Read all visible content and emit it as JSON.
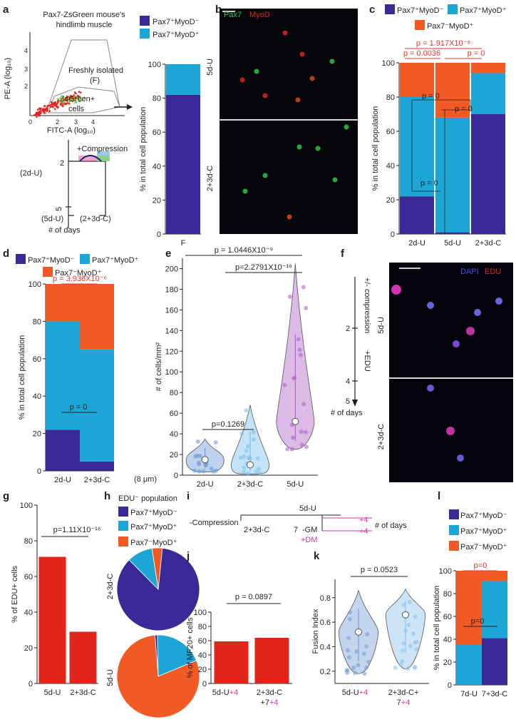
{
  "colors": {
    "pax7p_myod_n": "#3a2a97",
    "pax7p_myod_p": "#1ba6d6",
    "pax7n_myod_p": "#f15a24",
    "edu_bar": "#e1251b",
    "pval_red": "#e8312f",
    "magenta": "#d4359f"
  },
  "legend": {
    "pax7p_myod_n": "Pax7⁺MyoD⁻",
    "pax7p_myod_p": "Pax7⁺MyoD⁺",
    "pax7n_myod_p": "Pax7⁻MyoD⁺"
  },
  "panels": {
    "a": {
      "letter": "a",
      "flow_title_1": "Pax7-ZsGreen mouse's",
      "flow_title_2": "hindlimb muscle",
      "y_axis": "PE-A (log₁₀)",
      "x_axis": "FITC-A (log₁₀)",
      "gate_1": "Freshly isolated",
      "gate_2": "(F)",
      "cells_1": "ZsGreen+",
      "cells_2": "cells",
      "yticks": [
        "2",
        "3",
        "4"
      ],
      "xticks": [
        "0",
        "2",
        "3",
        "4"
      ],
      "timeline_compression": "+Compression",
      "timeline_2du": "(2d-U)",
      "timeline_5du": "(5d-U)",
      "timeline_23dc": "(2+3d-C)",
      "timeline_days": "# of days",
      "tick_2": "2",
      "tick_5": "5"
    },
    "b": {
      "letter": "b",
      "stain_1": "Pax7",
      "stain_2": "MyoD",
      "row_1": "5d-U",
      "row_2": "2+3d-C"
    },
    "c": {
      "letter": "c",
      "pvals": [
        "p = 1.917X10⁻⁸",
        "p = 0.0036",
        "p = 0",
        "p = 0",
        "p = 0",
        "p = 0"
      ]
    },
    "d": {
      "letter": "d",
      "pvals": [
        "p = 3.936X10⁻⁶",
        "p = 0"
      ],
      "x_suffix": "(8 μm)"
    },
    "e": {
      "letter": "e",
      "pvals": [
        "p = 1.0446X10⁻⁹",
        "p=2.2791X10⁻¹⁹",
        "p=0.1269"
      ]
    },
    "f": {
      "letter": "f",
      "stain_1": "DAPI",
      "stain_2": "EDU",
      "timeline_compression": "+/- compression",
      "timeline_edu": "+EDU",
      "timeline_days": "# of days",
      "ticks": [
        "2",
        "4",
        "5"
      ],
      "row_1": "5d-U",
      "row_2": "2+3d-C"
    },
    "g": {
      "letter": "g",
      "pval": "p=1.11X10⁻¹⁶"
    },
    "h": {
      "letter": "h",
      "title": "EDU⁻ population",
      "row_1": "2+3d-C",
      "row_2": "5d-U"
    },
    "i": {
      "letter": "i",
      "minus_compression": "-Compression",
      "du": "5d-U",
      "dc": "2+3d-C",
      "seven": "7",
      "gm": "-GM",
      "dm": "+DM",
      "plus4a": "+4",
      "plus4b": "+4",
      "days": "# of days"
    },
    "j": {
      "letter": "j",
      "pval": "p = 0.0897",
      "xl1_a": "5d-U",
      "xl1_b": "+4",
      "xl2_a": "2+3d-C",
      "xl2_b": "+7",
      "xl2_c": "+4"
    },
    "k": {
      "letter": "k",
      "pval": "p = 0.0523",
      "xl1_a": "5d-U",
      "xl1_b": "+4",
      "xl2_a": "2+3d-C+",
      "xl2_b": "7",
      "xl2_c": "+4"
    },
    "l": {
      "letter": "l",
      "pvals": [
        "p=0",
        "p=0"
      ]
    }
  },
  "chart_data": [
    {
      "panel": "a",
      "type": "bar",
      "stacked": true,
      "categories": [
        "F"
      ],
      "series": [
        {
          "name": "Pax7⁺MyoD⁻",
          "values": [
            82
          ]
        },
        {
          "name": "Pax7⁺MyoD⁺",
          "values": [
            18
          ]
        }
      ],
      "ylabel": "% in total cell population",
      "ylim": [
        0,
        100
      ],
      "yticks": [
        0,
        20,
        40,
        60,
        80,
        100
      ]
    },
    {
      "panel": "c",
      "type": "bar",
      "stacked": true,
      "categories": [
        "2d-U",
        "5d-U",
        "2+3d-C"
      ],
      "series": [
        {
          "name": "Pax7⁺MyoD⁻",
          "values": [
            22,
            1,
            70
          ]
        },
        {
          "name": "Pax7⁺MyoD⁺",
          "values": [
            58,
            67,
            24
          ]
        },
        {
          "name": "Pax7⁻MyoD⁺",
          "values": [
            20,
            32,
            6
          ]
        }
      ],
      "ylabel": "% in total cell population",
      "ylim": [
        0,
        100
      ],
      "yticks": [
        0,
        20,
        40,
        60,
        80,
        100
      ]
    },
    {
      "panel": "d",
      "type": "bar",
      "stacked": true,
      "categories": [
        "2d-U",
        "2+3d-C"
      ],
      "series": [
        {
          "name": "Pax7⁺MyoD⁻",
          "values": [
            22,
            5
          ]
        },
        {
          "name": "Pax7⁺MyoD⁺",
          "values": [
            58,
            60
          ]
        },
        {
          "name": "Pax7⁻MyoD⁺",
          "values": [
            20,
            35
          ]
        }
      ],
      "ylabel": "% in total cell population",
      "ylim": [
        0,
        100
      ],
      "yticks": [
        0,
        20,
        40,
        60,
        80,
        100
      ]
    },
    {
      "panel": "e",
      "type": "scatter",
      "categories": [
        "2d-U",
        "2+3d-C",
        "5d-U"
      ],
      "medians": [
        15,
        10,
        52
      ],
      "ranges": [
        [
          3,
          35
        ],
        [
          1,
          68
        ],
        [
          25,
          205
        ]
      ],
      "ylabel": "# of cells/mm²",
      "ylim": [
        0,
        210
      ],
      "yticks": [
        0,
        20,
        40,
        60,
        80,
        100,
        120,
        140,
        160,
        180,
        200
      ]
    },
    {
      "panel": "g",
      "type": "bar",
      "categories": [
        "5d-U",
        "2+3d-C"
      ],
      "values": [
        71,
        29
      ],
      "ylabel": "% of EDU+ cells",
      "ylim": [
        0,
        100
      ],
      "yticks": [
        0,
        20,
        40,
        60,
        80,
        100
      ]
    },
    {
      "panel": "h",
      "type": "pie",
      "pies": [
        {
          "name": "2+3d-C",
          "labels": [
            "Pax7⁺MyoD⁻",
            "Pax7⁺MyoD⁺",
            "Pax7⁻MyoD⁺"
          ],
          "values": [
            86,
            10,
            4
          ]
        },
        {
          "name": "5d-U",
          "labels": [
            "Pax7⁺MyoD⁻",
            "Pax7⁺MyoD⁺",
            "Pax7⁻MyoD⁺"
          ],
          "values": [
            1,
            19,
            80
          ]
        }
      ]
    },
    {
      "panel": "j",
      "type": "bar",
      "categories": [
        "5d-U+4",
        "2+3d-C+7+4"
      ],
      "values": [
        59,
        64
      ],
      "ylabel": "% of MF20+ cells",
      "ylim": [
        0,
        100
      ],
      "yticks": [
        0,
        20,
        40,
        60,
        80,
        100
      ]
    },
    {
      "panel": "k",
      "type": "scatter",
      "categories": [
        "5d-U+4",
        "2+3d-C+7+4"
      ],
      "medians": [
        0.52,
        0.66
      ],
      "ranges": [
        [
          0.18,
          0.86
        ],
        [
          0.22,
          0.87
        ]
      ],
      "ylabel": "Fusion Index",
      "ylim": [
        0.1,
        0.95
      ],
      "yticks": [
        0.2,
        0.4,
        0.6,
        0.8
      ]
    },
    {
      "panel": "l",
      "type": "bar",
      "stacked": true,
      "categories": [
        "7d-U",
        "7+3d-C"
      ],
      "series": [
        {
          "name": "Pax7⁺MyoD⁻",
          "values": [
            0,
            41
          ]
        },
        {
          "name": "Pax7⁺MyoD⁺",
          "values": [
            35,
            50
          ]
        },
        {
          "name": "Pax7⁻MyoD⁺",
          "values": [
            65,
            9
          ]
        }
      ],
      "ylabel": "% in total cell population",
      "ylim": [
        0,
        100
      ],
      "yticks": [
        0,
        20,
        40,
        60,
        80,
        100
      ]
    }
  ]
}
